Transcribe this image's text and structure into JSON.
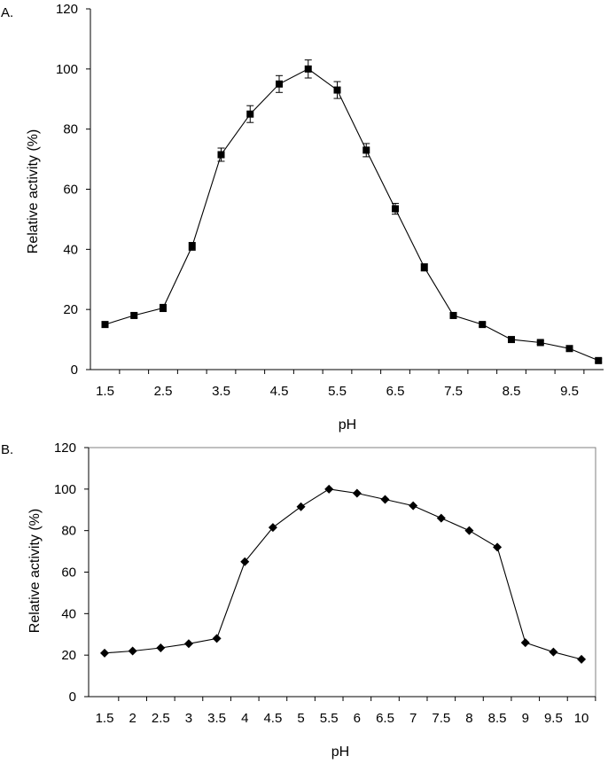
{
  "chart_data": [
    {
      "type": "line",
      "panel_label": "A.",
      "xlabel": "pH",
      "ylabel": "Relative activity (%)",
      "ylim": [
        0,
        120
      ],
      "yticks": [
        "0",
        "20",
        "40",
        "60",
        "80",
        "100",
        "120"
      ],
      "xticks": [
        "1.5",
        "2.5",
        "3.5",
        "4.5",
        "5.5",
        "6.5",
        "7.5",
        "8.5",
        "9.5"
      ],
      "xlim": [
        1.5,
        10
      ],
      "marker": "square",
      "error_bars": true,
      "frame": false,
      "grid": false,
      "x": [
        1.5,
        2.0,
        2.5,
        3.0,
        3.5,
        4.0,
        4.5,
        5.0,
        5.5,
        6.0,
        6.5,
        7.0,
        7.5,
        8.0,
        8.5,
        9.0,
        9.5,
        10.0
      ],
      "values": [
        15,
        18,
        20.5,
        41,
        71.5,
        85,
        95,
        100,
        93,
        73,
        53.5,
        34,
        18,
        15,
        10,
        9,
        7,
        3
      ],
      "errors": [
        0.8,
        0.8,
        1.2,
        1.3,
        2.2,
        2.8,
        2.8,
        3,
        2.8,
        2.2,
        1.8,
        1.2,
        0.8,
        0.6,
        0.6,
        0.6,
        0.6,
        0.6
      ]
    },
    {
      "type": "line",
      "panel_label": "B.",
      "xlabel": "pH",
      "ylabel": "Relative activity (%)",
      "ylim": [
        0,
        120
      ],
      "yticks": [
        "0",
        "20",
        "40",
        "60",
        "80",
        "100",
        "120"
      ],
      "xticks": [
        "1.5",
        "2",
        "2.5",
        "3",
        "3.5",
        "4",
        "4.5",
        "5",
        "5.5",
        "6",
        "6.5",
        "7",
        "7.5",
        "8",
        "8.5",
        "9",
        "9.5",
        "10"
      ],
      "marker": "diamond",
      "error_bars": false,
      "frame": true,
      "grid": false,
      "x": [
        1.5,
        2.0,
        2.5,
        3.0,
        3.5,
        4.0,
        4.5,
        5.0,
        5.5,
        6.0,
        6.5,
        7.0,
        7.5,
        8.0,
        8.5,
        9.0,
        9.5,
        10.0
      ],
      "values": [
        21,
        22,
        23.5,
        25.5,
        28,
        65,
        81.5,
        91.5,
        100,
        98,
        95,
        92,
        86,
        80,
        72,
        26,
        21.5,
        18
      ]
    }
  ]
}
